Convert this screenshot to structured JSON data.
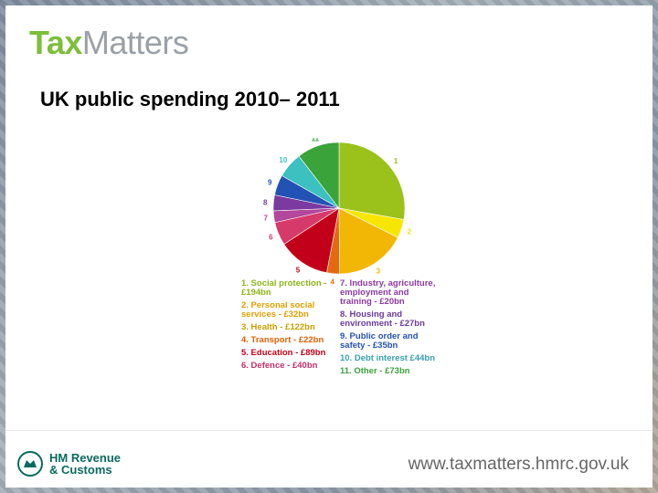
{
  "header": {
    "logo_tax": "Tax",
    "logo_matters": "Matters"
  },
  "slide": {
    "title": "UK public spending 2010– 2011"
  },
  "chart_data": {
    "type": "pie",
    "slices": [
      {
        "label": "1",
        "value": 194,
        "color": "#9ac21b"
      },
      {
        "label": "2",
        "value": 32,
        "color": "#f7e600"
      },
      {
        "label": "3",
        "value": 122,
        "color": "#f2b705"
      },
      {
        "label": "4",
        "value": 22,
        "color": "#e46a10"
      },
      {
        "label": "5",
        "value": 89,
        "color": "#c3001a"
      },
      {
        "label": "6",
        "value": 40,
        "color": "#d63a6a"
      },
      {
        "label": "7",
        "value": 20,
        "color": "#b2479c"
      },
      {
        "label": "8",
        "value": 27,
        "color": "#7a3aa0"
      },
      {
        "label": "9",
        "value": 35,
        "color": "#2352b5"
      },
      {
        "label": "10",
        "value": 44,
        "color": "#3cc0c0"
      },
      {
        "label": "11",
        "value": 73,
        "color": "#3aa33a"
      }
    ]
  },
  "legend": {
    "left": [
      "1. Social protection - £194bn",
      "2. Personal social services - £32bn",
      "3. Health - £122bn",
      "4. Transport - £22bn",
      "5. Education - £89bn",
      "6. Defence - £40bn"
    ],
    "right": [
      "7. Industry, agriculture, employment and training - £20bn",
      "8. Housing and environment - £27bn",
      "9. Public order and safety - £35bn",
      "10. Debt interest £44bn",
      "11. Other - £73bn"
    ],
    "colors": [
      "#8bb51a",
      "#e0a000",
      "#c8a000",
      "#e06000",
      "#c3001a",
      "#c0306a",
      "#8a3aa0",
      "#6a3aa0",
      "#2352b5",
      "#3aa0b0",
      "#3aa33a"
    ]
  },
  "footer": {
    "org_line1": "HM Revenue",
    "org_line2": "& Customs",
    "url": "www.taxmatters.hmrc.gov.uk"
  }
}
